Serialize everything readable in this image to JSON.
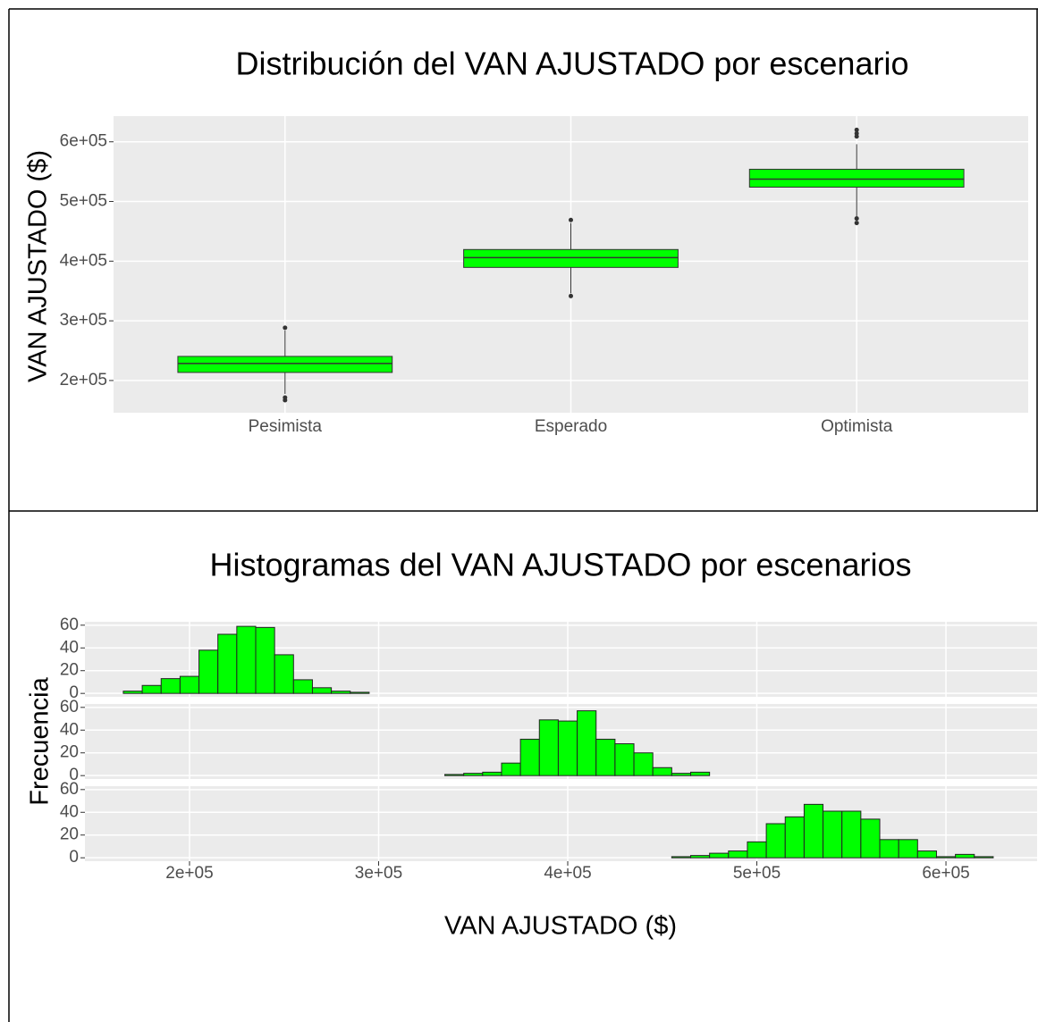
{
  "chart_data": [
    {
      "type": "box",
      "title": "Distribución del VAN AJUSTADO por escenario",
      "y_label": "VAN AJUSTADO ($)",
      "categories": [
        "Pesimista",
        "Esperado",
        "Optimista"
      ],
      "color": "#00ff00",
      "min": [
        177500,
        346000,
        474500
      ],
      "q1": [
        213500,
        389500,
        524000
      ],
      "median": [
        228500,
        406000,
        537500
      ],
      "q3": [
        240400,
        419500,
        554000
      ],
      "max": [
        284000,
        464000,
        596000
      ],
      "outliers": [
        [
          171500,
          167000,
          288400
        ],
        [
          341500,
          469000
        ],
        [
          620000,
          614000,
          609000,
          471500,
          464000
        ]
      ],
      "ylim": [
        146000,
        643000
      ],
      "yticks": [
        {
          "value": 200000,
          "label": "2e+05"
        },
        {
          "value": 300000,
          "label": "3e+05"
        },
        {
          "value": 400000,
          "label": "4e+05"
        },
        {
          "value": 500000,
          "label": "5e+05"
        },
        {
          "value": 600000,
          "label": "6e+05"
        }
      ],
      "grid": true
    },
    {
      "type": "histogram",
      "title": "Histogramas del VAN AJUSTADO por escenarios",
      "x_label": "VAN AJUSTADO ($)",
      "y_label": "Frecuencia",
      "bins": [
        165000,
        175000,
        185000,
        195000,
        205000,
        215000,
        225000,
        235000,
        245000,
        255000,
        265000,
        275000,
        285000,
        295000,
        305000,
        315000,
        325000,
        335000,
        345000,
        355000,
        365000,
        375000,
        385000,
        395000,
        405000,
        415000,
        425000,
        435000,
        445000,
        455000,
        465000,
        475000,
        485000,
        495000,
        505000,
        515000,
        525000,
        535000,
        545000,
        555000,
        565000,
        575000,
        585000,
        595000,
        605000,
        615000,
        625000
      ],
      "series": [
        {
          "color": "#00ff00",
          "values": [
            2,
            7,
            13,
            15,
            38,
            52,
            59,
            58,
            34,
            12,
            5,
            2,
            1,
            0,
            0,
            0,
            0,
            0,
            0,
            0,
            0,
            0,
            0,
            0,
            0,
            0,
            0,
            0,
            0,
            0,
            0,
            0,
            0,
            0,
            0,
            0,
            0,
            0,
            0,
            0,
            0,
            0,
            0,
            0,
            0,
            0
          ]
        },
        {
          "color": "#00ff00",
          "values": [
            0,
            0,
            0,
            0,
            0,
            0,
            0,
            0,
            0,
            0,
            0,
            0,
            0,
            0,
            0,
            0,
            0,
            1,
            2,
            3,
            11,
            32,
            49,
            48,
            57,
            32,
            28,
            20,
            7,
            2,
            3,
            0,
            0,
            0,
            0,
            0,
            0,
            0,
            0,
            0,
            0,
            0,
            0,
            0,
            0,
            0
          ]
        },
        {
          "color": "#00ff00",
          "values": [
            0,
            0,
            0,
            0,
            0,
            0,
            0,
            0,
            0,
            0,
            0,
            0,
            0,
            0,
            0,
            0,
            0,
            0,
            0,
            0,
            0,
            0,
            0,
            0,
            0,
            0,
            0,
            0,
            0,
            1,
            2,
            4,
            6,
            14,
            30,
            36,
            47,
            41,
            41,
            34,
            16,
            16,
            6,
            1,
            3,
            1
          ]
        }
      ],
      "xlim": [
        144700,
        648200
      ],
      "xticks": [
        {
          "value": 200000,
          "label": "2e+05"
        },
        {
          "value": 300000,
          "label": "3e+05"
        },
        {
          "value": 400000,
          "label": "4e+05"
        },
        {
          "value": 500000,
          "label": "5e+05"
        },
        {
          "value": 600000,
          "label": "6e+05"
        }
      ],
      "ylim": [
        -3,
        63
      ],
      "yticks": [
        0,
        20,
        40,
        60
      ],
      "grid": true
    }
  ]
}
